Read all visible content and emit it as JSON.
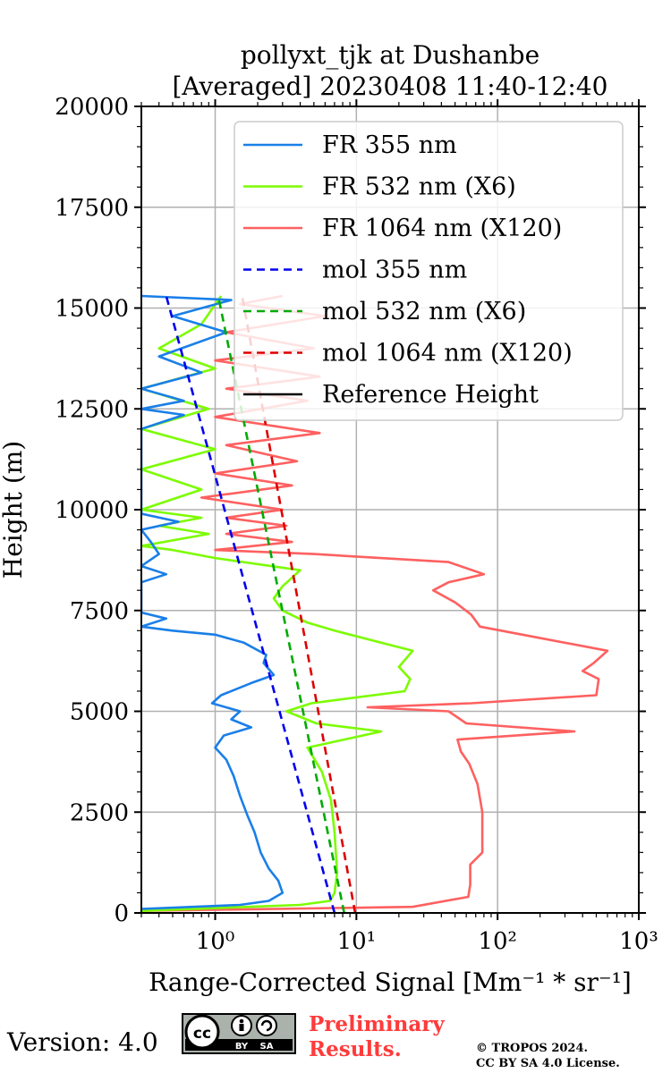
{
  "chart_data": {
    "type": "line",
    "title_line1": "pollyxt_tjk at Dushanbe",
    "title_line2": "[Averaged] 20230408 11:40-12:40",
    "xlabel": "Range-Corrected Signal [Mm⁻¹ * sr⁻¹]",
    "ylabel": "Height (m)",
    "xscale": "log",
    "xlim": [
      0.3,
      1000
    ],
    "ylim": [
      0,
      20000
    ],
    "grid": true,
    "legend_position": "top-right",
    "x_ticks": [
      {
        "value": 1,
        "label": "10⁰"
      },
      {
        "value": 10,
        "label": "10¹"
      },
      {
        "value": 100,
        "label": "10²"
      },
      {
        "value": 1000,
        "label": "10³"
      }
    ],
    "y_ticks": [
      {
        "value": 0,
        "label": "0"
      },
      {
        "value": 2500,
        "label": "2500"
      },
      {
        "value": 5000,
        "label": "5000"
      },
      {
        "value": 7500,
        "label": "7500"
      },
      {
        "value": 10000,
        "label": "10000"
      },
      {
        "value": 12500,
        "label": "12500"
      },
      {
        "value": 15000,
        "label": "15000"
      },
      {
        "value": 17500,
        "label": "17500"
      },
      {
        "value": 20000,
        "label": "20000"
      }
    ],
    "series": [
      {
        "name": "FR 355 nm",
        "color": "#1a7fe8",
        "dash": "none",
        "points": [
          [
            0.3,
            100
          ],
          [
            1.5,
            200
          ],
          [
            2.4,
            300
          ],
          [
            3.0,
            500
          ],
          [
            2.8,
            800
          ],
          [
            2.4,
            1100
          ],
          [
            2.1,
            1500
          ],
          [
            1.9,
            2000
          ],
          [
            1.7,
            2400
          ],
          [
            1.5,
            2900
          ],
          [
            1.35,
            3400
          ],
          [
            1.2,
            3800
          ],
          [
            1.0,
            4100
          ],
          [
            1.15,
            4400
          ],
          [
            1.8,
            4600
          ],
          [
            1.3,
            4800
          ],
          [
            1.5,
            5000
          ],
          [
            0.95,
            5200
          ],
          [
            1.1,
            5400
          ],
          [
            1.8,
            5700
          ],
          [
            2.6,
            5900
          ],
          [
            2.2,
            6200
          ],
          [
            2.3,
            6400
          ],
          [
            1.6,
            6700
          ],
          [
            1.0,
            6900
          ],
          [
            0.5,
            7000
          ],
          [
            0.3,
            7100
          ],
          [
            0.45,
            7300
          ],
          [
            0.3,
            7450
          ],
          [
            0.3,
            8200
          ],
          [
            0.45,
            8400
          ],
          [
            0.3,
            8600
          ],
          [
            0.4,
            8900
          ],
          [
            0.35,
            9200
          ],
          [
            0.3,
            9500
          ],
          [
            0.55,
            9700
          ],
          [
            0.3,
            9900
          ],
          [
            0.3,
            12000
          ],
          [
            0.6,
            12350
          ],
          [
            0.3,
            12500
          ],
          [
            0.6,
            12700
          ],
          [
            0.3,
            13000
          ],
          [
            0.8,
            13400
          ],
          [
            0.4,
            13800
          ],
          [
            1.2,
            14400
          ],
          [
            0.5,
            14800
          ],
          [
            1.3,
            15200
          ],
          [
            0.3,
            15300
          ]
        ]
      },
      {
        "name": "FR 532 nm (X6)",
        "color": "#7cfc00",
        "dash": "none",
        "points": [
          [
            0.3,
            50
          ],
          [
            4.0,
            200
          ],
          [
            6.5,
            300
          ],
          [
            7.0,
            500
          ],
          [
            7.3,
            1000
          ],
          [
            7.0,
            2000
          ],
          [
            6.6,
            2800
          ],
          [
            5.7,
            3500
          ],
          [
            4.5,
            4100
          ],
          [
            15.0,
            4500
          ],
          [
            5.2,
            4700
          ],
          [
            3.2,
            5000
          ],
          [
            4.8,
            5200
          ],
          [
            22.0,
            5500
          ],
          [
            24.0,
            5800
          ],
          [
            20.0,
            6100
          ],
          [
            25.0,
            6500
          ],
          [
            15.0,
            6700
          ],
          [
            7.0,
            7000
          ],
          [
            4.5,
            7200
          ],
          [
            3.0,
            7500
          ],
          [
            2.6,
            7800
          ],
          [
            3.0,
            8100
          ],
          [
            4.0,
            8500
          ],
          [
            1.0,
            8800
          ],
          [
            0.5,
            9000
          ],
          [
            0.3,
            9100
          ],
          [
            0.9,
            9400
          ],
          [
            0.4,
            9600
          ],
          [
            0.8,
            9800
          ],
          [
            0.3,
            10000
          ],
          [
            0.8,
            10500
          ],
          [
            0.3,
            11000
          ],
          [
            1.0,
            11500
          ],
          [
            0.3,
            12000
          ],
          [
            0.9,
            12500
          ],
          [
            0.3,
            13000
          ],
          [
            1.0,
            13500
          ],
          [
            0.4,
            14000
          ],
          [
            0.8,
            14600
          ],
          [
            1.1,
            15300
          ]
        ]
      },
      {
        "name": "FR 1064 nm (X120)",
        "color": "#ff6060",
        "dash": "none",
        "points": [
          [
            0.3,
            50
          ],
          [
            25,
            150
          ],
          [
            62,
            400
          ],
          [
            64,
            700
          ],
          [
            64,
            1200
          ],
          [
            78,
            1500
          ],
          [
            78,
            2500
          ],
          [
            72,
            3200
          ],
          [
            63,
            3700
          ],
          [
            55,
            4000
          ],
          [
            52,
            4300
          ],
          [
            350,
            4500
          ],
          [
            60,
            4700
          ],
          [
            45,
            5000
          ],
          [
            12,
            5100
          ],
          [
            65,
            5200
          ],
          [
            500,
            5400
          ],
          [
            520,
            5800
          ],
          [
            400,
            6000
          ],
          [
            480,
            6200
          ],
          [
            600,
            6500
          ],
          [
            150,
            6900
          ],
          [
            75,
            7100
          ],
          [
            65,
            7400
          ],
          [
            50,
            7700
          ],
          [
            35,
            8000
          ],
          [
            45,
            8200
          ],
          [
            80,
            8400
          ],
          [
            45,
            8700
          ],
          [
            5,
            8900
          ],
          [
            1.0,
            9000
          ],
          [
            3.5,
            9200
          ],
          [
            1.2,
            9400
          ],
          [
            3.2,
            9600
          ],
          [
            1.2,
            9800
          ],
          [
            3.0,
            10000
          ],
          [
            0.8,
            10300
          ],
          [
            3.5,
            10600
          ],
          [
            1.0,
            10900
          ],
          [
            3.8,
            11200
          ],
          [
            1.2,
            11600
          ],
          [
            5.5,
            11900
          ],
          [
            1.0,
            12300
          ],
          [
            4.5,
            12700
          ],
          [
            1.2,
            13000
          ],
          [
            5.5,
            13300
          ],
          [
            1.0,
            13700
          ],
          [
            5.0,
            14000
          ],
          [
            1.2,
            14400
          ],
          [
            6.0,
            14800
          ],
          [
            1.5,
            15100
          ],
          [
            3.0,
            15300
          ]
        ]
      },
      {
        "name": "mol 355 nm",
        "color": "#0000ee",
        "dash": "9,6",
        "points": [
          [
            7.0,
            0
          ],
          [
            0.45,
            15300
          ]
        ]
      },
      {
        "name": "mol 532 nm (X6)",
        "color": "#00aa00",
        "dash": "9,6",
        "points": [
          [
            8.2,
            0
          ],
          [
            1.05,
            15300
          ]
        ]
      },
      {
        "name": "mol 1064 nm (X120)",
        "color": "#dd0000",
        "dash": "9,6",
        "points": [
          [
            9.8,
            0
          ],
          [
            1.55,
            15300
          ]
        ]
      },
      {
        "name": "Reference Height",
        "color": "#000000",
        "dash": "none",
        "points": []
      }
    ]
  },
  "footer": {
    "version": "Version: 4.0",
    "license_badge": "cc-by-sa-badge",
    "license_badge_by": "BY",
    "license_badge_sa": "SA",
    "prelim_line1": "Preliminary",
    "prelim_line2": "Results.",
    "copyright_line1": "© TROPOS 2024.",
    "copyright_line2": "CC BY SA 4.0 License."
  }
}
